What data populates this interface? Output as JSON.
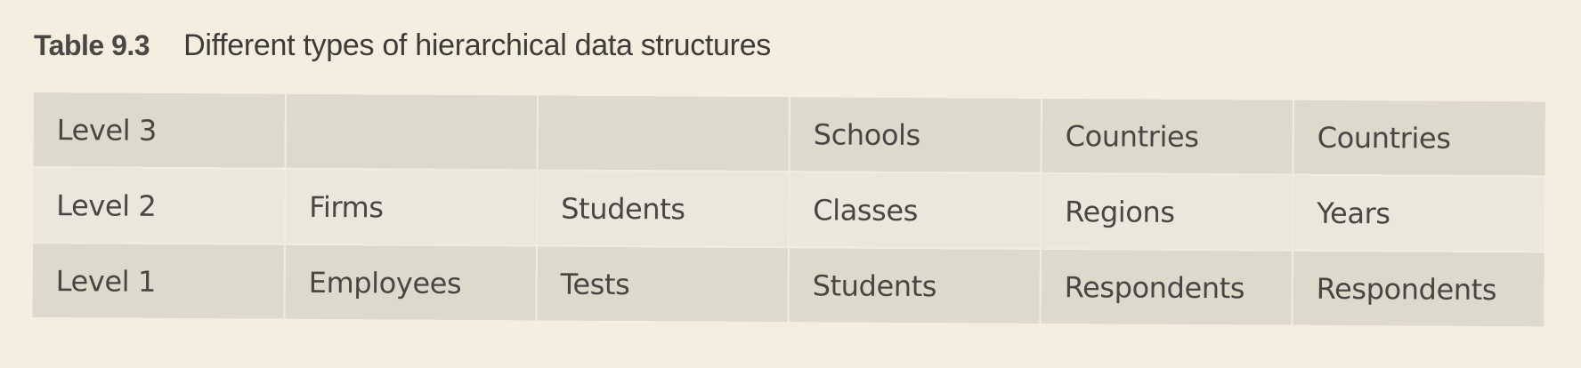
{
  "caption": {
    "label": "Table 9.3",
    "title": "Different types of hierarchical data structures"
  },
  "table": {
    "rows": [
      {
        "header": "Level 3",
        "cells": [
          "",
          "",
          "Schools",
          "Countries",
          "Countries"
        ]
      },
      {
        "header": "Level 2",
        "cells": [
          "Firms",
          "Students",
          "Classes",
          "Regions",
          "Years"
        ]
      },
      {
        "header": "Level 1",
        "cells": [
          "Employees",
          "Tests",
          "Students",
          "Respondents",
          "Respondents"
        ]
      }
    ]
  },
  "colors": {
    "page_background": "#f3eedf",
    "row_shaded": "#ddd9cd",
    "row_light": "#ebe7dc",
    "text": "#4a4643"
  }
}
